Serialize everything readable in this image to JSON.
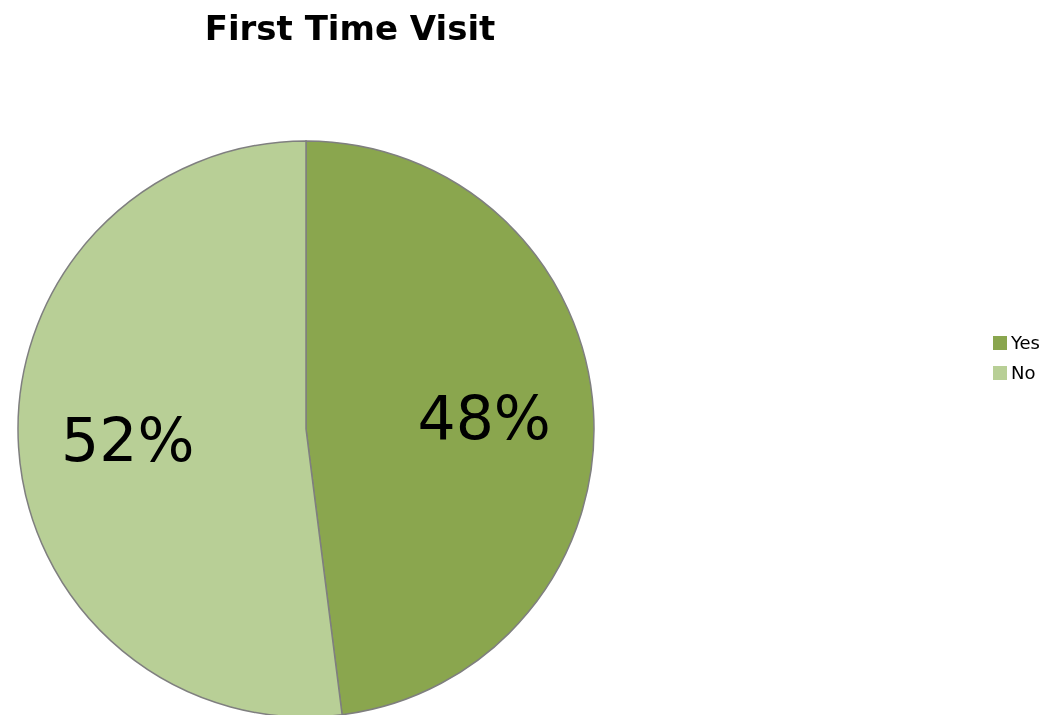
{
  "chart_data": {
    "type": "pie",
    "title": "First Time Visit",
    "categories": [
      "Yes",
      "No"
    ],
    "values": [
      48,
      52
    ],
    "colors": [
      "#8aa64e",
      "#b8cf96"
    ],
    "value_labels": [
      "48%",
      "52%"
    ],
    "legend": "right"
  }
}
